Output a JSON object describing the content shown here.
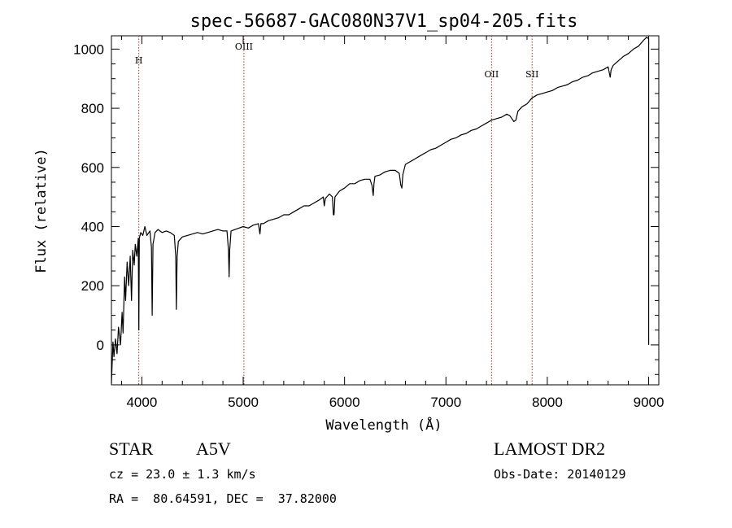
{
  "chart_data": {
    "type": "line",
    "title": "spec-56687-GAC080N37V1_sp04-205.fits",
    "xlabel": "Wavelength (Å)",
    "ylabel": "Flux (relative)",
    "xlim": [
      3700,
      9100
    ],
    "ylim": [
      -135,
      1045
    ],
    "x_ticks": [
      4000,
      5000,
      6000,
      7000,
      8000,
      9000
    ],
    "y_ticks": [
      0,
      200,
      400,
      600,
      800,
      1000
    ],
    "grid": false,
    "reference_lines": [
      {
        "label": "H",
        "wavelength": 3970
      },
      {
        "label": "OIII",
        "wavelength": 5007
      },
      {
        "label": "OII",
        "wavelength": 7450
      },
      {
        "label": "SII",
        "wavelength": 7850
      }
    ],
    "series": [
      {
        "color": "#000000",
        "points": [
          [
            3700,
            -130
          ],
          [
            3715,
            10
          ],
          [
            3725,
            -40
          ],
          [
            3740,
            20
          ],
          [
            3755,
            -30
          ],
          [
            3770,
            60
          ],
          [
            3790,
            0
          ],
          [
            3805,
            110
          ],
          [
            3815,
            40
          ],
          [
            3830,
            230
          ],
          [
            3840,
            150
          ],
          [
            3855,
            280
          ],
          [
            3870,
            200
          ],
          [
            3885,
            300
          ],
          [
            3898,
            150
          ],
          [
            3910,
            320
          ],
          [
            3925,
            270
          ],
          [
            3935,
            340
          ],
          [
            3950,
            300
          ],
          [
            3965,
            360
          ],
          [
            3970,
            50
          ],
          [
            3975,
            360
          ],
          [
            3990,
            380
          ],
          [
            4010,
            370
          ],
          [
            4030,
            400
          ],
          [
            4050,
            370
          ],
          [
            4080,
            385
          ],
          [
            4095,
            330
          ],
          [
            4102,
            100
          ],
          [
            4110,
            340
          ],
          [
            4130,
            380
          ],
          [
            4160,
            390
          ],
          [
            4200,
            380
          ],
          [
            4240,
            385
          ],
          [
            4280,
            380
          ],
          [
            4320,
            370
          ],
          [
            4335,
            300
          ],
          [
            4340,
            120
          ],
          [
            4348,
            300
          ],
          [
            4360,
            350
          ],
          [
            4400,
            365
          ],
          [
            4450,
            370
          ],
          [
            4500,
            375
          ],
          [
            4550,
            380
          ],
          [
            4600,
            375
          ],
          [
            4650,
            380
          ],
          [
            4700,
            385
          ],
          [
            4750,
            390
          ],
          [
            4800,
            385
          ],
          [
            4840,
            385
          ],
          [
            4855,
            320
          ],
          [
            4861,
            230
          ],
          [
            4867,
            320
          ],
          [
            4880,
            385
          ],
          [
            4920,
            390
          ],
          [
            4960,
            395
          ],
          [
            5000,
            400
          ],
          [
            5050,
            395
          ],
          [
            5100,
            405
          ],
          [
            5150,
            410
          ],
          [
            5165,
            375
          ],
          [
            5175,
            410
          ],
          [
            5200,
            410
          ],
          [
            5250,
            420
          ],
          [
            5300,
            425
          ],
          [
            5350,
            430
          ],
          [
            5400,
            440
          ],
          [
            5450,
            440
          ],
          [
            5500,
            450
          ],
          [
            5550,
            460
          ],
          [
            5600,
            470
          ],
          [
            5650,
            470
          ],
          [
            5700,
            480
          ],
          [
            5750,
            490
          ],
          [
            5790,
            500
          ],
          [
            5800,
            470
          ],
          [
            5810,
            495
          ],
          [
            5850,
            510
          ],
          [
            5880,
            500
          ],
          [
            5890,
            440
          ],
          [
            5896,
            440
          ],
          [
            5905,
            500
          ],
          [
            5950,
            520
          ],
          [
            6000,
            530
          ],
          [
            6050,
            545
          ],
          [
            6100,
            545
          ],
          [
            6150,
            555
          ],
          [
            6200,
            560
          ],
          [
            6250,
            560
          ],
          [
            6270,
            540
          ],
          [
            6283,
            505
          ],
          [
            6290,
            545
          ],
          [
            6300,
            570
          ],
          [
            6350,
            575
          ],
          [
            6400,
            585
          ],
          [
            6450,
            590
          ],
          [
            6500,
            590
          ],
          [
            6540,
            580
          ],
          [
            6555,
            540
          ],
          [
            6565,
            530
          ],
          [
            6575,
            575
          ],
          [
            6600,
            610
          ],
          [
            6650,
            620
          ],
          [
            6700,
            630
          ],
          [
            6750,
            640
          ],
          [
            6800,
            650
          ],
          [
            6850,
            660
          ],
          [
            6900,
            665
          ],
          [
            6950,
            675
          ],
          [
            7000,
            685
          ],
          [
            7050,
            695
          ],
          [
            7100,
            700
          ],
          [
            7150,
            710
          ],
          [
            7200,
            715
          ],
          [
            7250,
            725
          ],
          [
            7300,
            730
          ],
          [
            7350,
            740
          ],
          [
            7400,
            750
          ],
          [
            7450,
            760
          ],
          [
            7500,
            765
          ],
          [
            7550,
            770
          ],
          [
            7600,
            780
          ],
          [
            7630,
            775
          ],
          [
            7650,
            765
          ],
          [
            7670,
            755
          ],
          [
            7690,
            760
          ],
          [
            7710,
            790
          ],
          [
            7750,
            805
          ],
          [
            7800,
            815
          ],
          [
            7850,
            835
          ],
          [
            7900,
            845
          ],
          [
            7950,
            850
          ],
          [
            8000,
            855
          ],
          [
            8050,
            860
          ],
          [
            8100,
            870
          ],
          [
            8150,
            875
          ],
          [
            8200,
            880
          ],
          [
            8250,
            890
          ],
          [
            8300,
            895
          ],
          [
            8350,
            905
          ],
          [
            8400,
            910
          ],
          [
            8450,
            920
          ],
          [
            8500,
            925
          ],
          [
            8550,
            930
          ],
          [
            8600,
            940
          ],
          [
            8620,
            905
          ],
          [
            8630,
            930
          ],
          [
            8650,
            945
          ],
          [
            8700,
            960
          ],
          [
            8750,
            975
          ],
          [
            8800,
            985
          ],
          [
            8850,
            1000
          ],
          [
            8900,
            1010
          ],
          [
            8950,
            1030
          ],
          [
            8980,
            1040
          ],
          [
            9000,
            1035
          ]
        ]
      }
    ]
  },
  "footer": {
    "object_class": "STAR",
    "subclass": "A5V",
    "survey": "LAMOST DR2",
    "redshift": "cz = 23.0 ± 1.3 km/s",
    "obs_date": "Obs-Date: 20140129",
    "coords": "RA =  80.64591, DEC =  37.82000"
  }
}
